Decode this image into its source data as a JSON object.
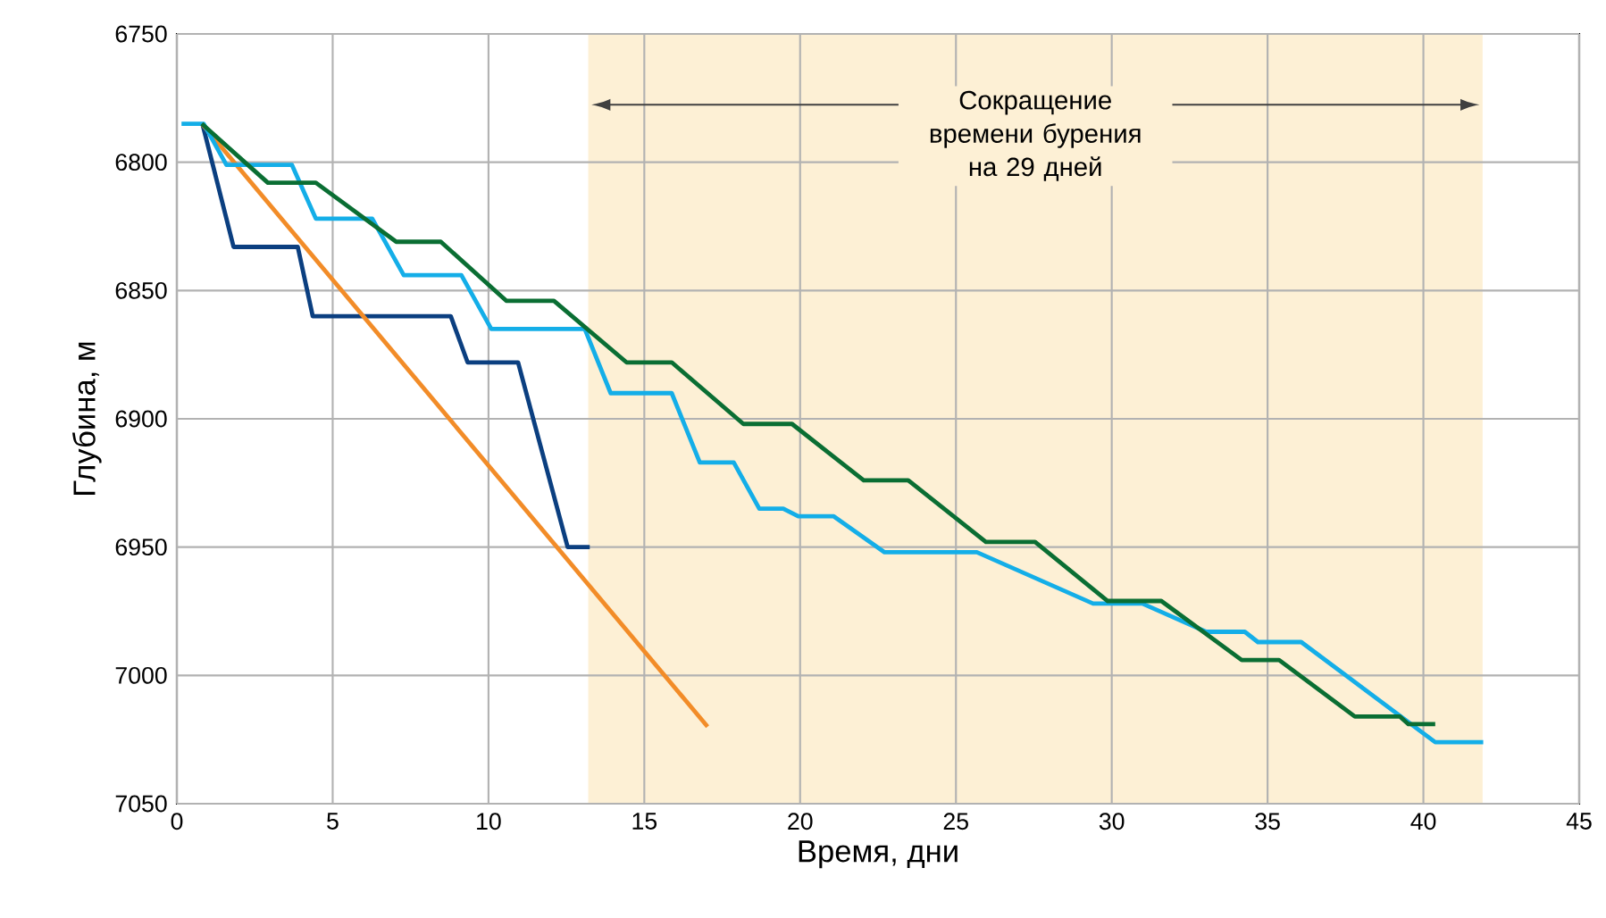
{
  "chart_data": {
    "type": "line",
    "xlabel": "Время, дни",
    "ylabel": "Глубина, м",
    "xlim": [
      0,
      45
    ],
    "xticks": [
      0,
      5,
      10,
      15,
      20,
      25,
      30,
      35,
      40,
      45
    ],
    "ylim": [
      7050,
      6750
    ],
    "yticks": [
      6750,
      6800,
      6850,
      6900,
      6950,
      7000,
      7050
    ],
    "grid": true,
    "marker": "none",
    "line_style": "solid",
    "bands": [
      {
        "axis": "x",
        "from": 13.2,
        "to": 41.9,
        "label": "Сокращение времени бурения на 29 дней",
        "color": "#fdf0d5"
      }
    ],
    "series": [
      {
        "color": "#0b3f80",
        "x": [
          0.82,
          1.82,
          3.88,
          4.36,
          8.79,
          9.33,
          10.95,
          12.54,
          13.25
        ],
        "values": [
          6785,
          6833,
          6833,
          6860,
          6860,
          6878,
          6878,
          6950,
          6950
        ]
      },
      {
        "color": "#f28c28",
        "x": [
          0.8,
          17.03
        ],
        "values": [
          6785,
          7020
        ]
      },
      {
        "color": "#14aee8",
        "x": [
          0.15,
          0.86,
          1.59,
          3.69,
          4.46,
          6.27,
          7.28,
          9.13,
          10.09,
          13.09,
          13.92,
          15.88,
          16.78,
          17.87,
          18.69,
          19.46,
          19.94,
          21.08,
          22.71,
          25.67,
          29.4,
          30.98,
          33.03,
          34.27,
          34.69,
          36.08,
          40.38,
          41.92
        ],
        "values": [
          6785,
          6785,
          6801,
          6801,
          6822,
          6822,
          6844,
          6844,
          6865,
          6865,
          6890,
          6890,
          6917,
          6917,
          6935,
          6935,
          6938,
          6938,
          6952,
          6952,
          6972,
          6972,
          6983,
          6983,
          6987,
          6987,
          7026,
          7026
        ]
      },
      {
        "color": "#0a6e33",
        "x": [
          0.8,
          2.92,
          4.46,
          7.04,
          8.47,
          10.57,
          12.1,
          14.43,
          15.88,
          18.18,
          19.74,
          22.04,
          23.47,
          25.96,
          27.54,
          29.87,
          31.59,
          34.17,
          35.37,
          37.8,
          39.24,
          39.52,
          40.38
        ],
        "values": [
          6785,
          6808,
          6808,
          6831,
          6831,
          6854,
          6854,
          6878,
          6878,
          6902,
          6902,
          6924,
          6924,
          6948,
          6948,
          6971,
          6971,
          6994,
          6994,
          7016,
          7016,
          7019,
          7019
        ]
      }
    ]
  }
}
